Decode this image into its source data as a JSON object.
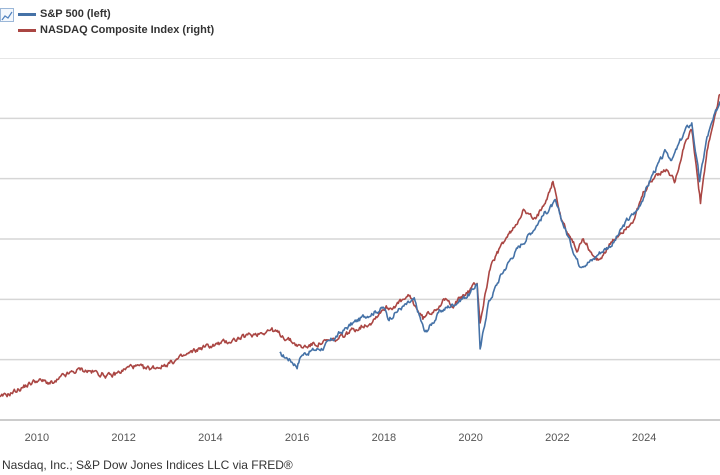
{
  "legend": {
    "items": [
      {
        "label": "S&P 500 (left)",
        "color": "#4572a7"
      },
      {
        "label": "NASDAQ Composite Index (right)",
        "color": "#aa4643"
      }
    ]
  },
  "footer": {
    "source": "Nasdaq, Inc.; S&P Dow Jones Indices LLC via FRED®"
  },
  "chart_data": {
    "type": "line",
    "title": "",
    "xlabel": "",
    "ylabel": "",
    "x_ticks": [
      2010,
      2012,
      2014,
      2016,
      2018,
      2020,
      2022,
      2024
    ],
    "xlim": [
      2009.15,
      2025.75
    ],
    "grid": "horizontal",
    "legend_position": "top-left",
    "series": [
      {
        "name": "S&P 500 (left)",
        "color": "#4572a7",
        "axis": "left",
        "x": [
          2015.6,
          2015.8,
          2016.0,
          2016.1,
          2016.3,
          2016.6,
          2016.9,
          2017.2,
          2017.6,
          2018.0,
          2018.1,
          2018.4,
          2018.7,
          2018.95,
          2019.3,
          2019.6,
          2020.0,
          2020.15,
          2020.22,
          2020.4,
          2020.7,
          2021.0,
          2021.4,
          2021.7,
          2021.95,
          2022.3,
          2022.5,
          2022.8,
          2022.95,
          2023.3,
          2023.6,
          2023.85,
          2024.2,
          2024.5,
          2024.65,
          2024.95,
          2025.1,
          2025.28,
          2025.45,
          2025.75
        ],
        "values": [
          0.18,
          0.17,
          0.15,
          0.18,
          0.19,
          0.2,
          0.23,
          0.26,
          0.29,
          0.31,
          0.28,
          0.31,
          0.33,
          0.24,
          0.3,
          0.32,
          0.35,
          0.38,
          0.19,
          0.32,
          0.4,
          0.46,
          0.52,
          0.57,
          0.6,
          0.49,
          0.43,
          0.44,
          0.46,
          0.49,
          0.55,
          0.58,
          0.68,
          0.74,
          0.72,
          0.8,
          0.82,
          0.66,
          0.78,
          0.88
        ]
      },
      {
        "name": "NASDAQ Composite Index (right)",
        "color": "#aa4643",
        "axis": "right",
        "x": [
          2009.15,
          2009.5,
          2010.0,
          2010.4,
          2010.6,
          2011.0,
          2011.4,
          2011.7,
          2012.2,
          2012.5,
          2012.9,
          2013.3,
          2013.8,
          2014.2,
          2014.8,
          2015.4,
          2015.7,
          2016.1,
          2016.4,
          2016.9,
          2017.3,
          2017.7,
          2018.0,
          2018.15,
          2018.6,
          2018.9,
          2019.0,
          2019.4,
          2019.6,
          2020.0,
          2020.15,
          2020.22,
          2020.45,
          2020.75,
          2021.0,
          2021.2,
          2021.5,
          2021.8,
          2021.9,
          2022.1,
          2022.45,
          2022.6,
          2022.9,
          2023.0,
          2023.4,
          2023.8,
          2024.0,
          2024.3,
          2024.55,
          2024.7,
          2024.95,
          2025.1,
          2025.3,
          2025.45,
          2025.75
        ],
        "values": [
          0.06,
          0.08,
          0.11,
          0.1,
          0.12,
          0.14,
          0.13,
          0.12,
          0.15,
          0.14,
          0.15,
          0.17,
          0.2,
          0.21,
          0.23,
          0.25,
          0.23,
          0.2,
          0.21,
          0.22,
          0.25,
          0.27,
          0.31,
          0.31,
          0.34,
          0.28,
          0.29,
          0.33,
          0.32,
          0.36,
          0.38,
          0.27,
          0.42,
          0.49,
          0.53,
          0.58,
          0.55,
          0.63,
          0.66,
          0.55,
          0.47,
          0.5,
          0.44,
          0.45,
          0.51,
          0.56,
          0.63,
          0.68,
          0.69,
          0.66,
          0.77,
          0.8,
          0.6,
          0.74,
          0.9
        ]
      }
    ]
  }
}
